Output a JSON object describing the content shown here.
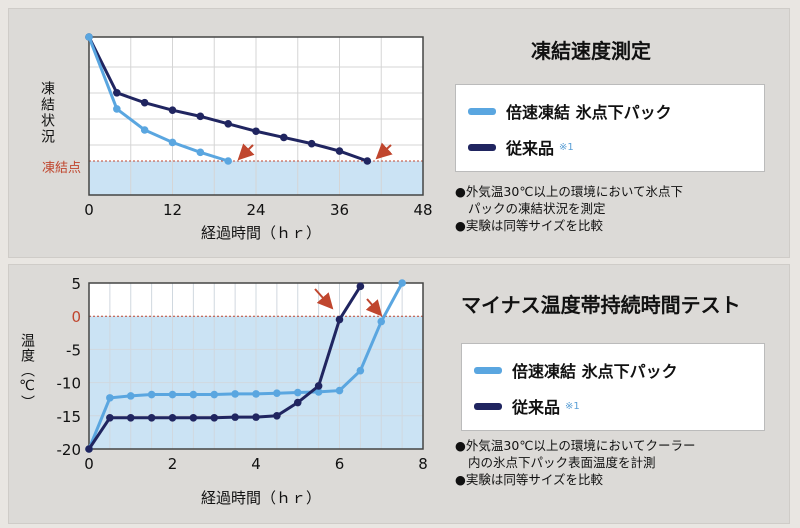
{
  "colors": {
    "fast": "#5aa6e0",
    "conventional": "#202560",
    "arrow": "#c0462e",
    "freeze": "#c0462e",
    "zone": "#cbe3f4"
  },
  "chart_data": [
    {
      "type": "line",
      "title": "凍結速度測定",
      "xlabel": "経過時間（ｈｒ）",
      "ylabel": "凍結状況",
      "y_marker_label": "凍結点",
      "xlim": [
        0,
        48
      ],
      "xticks": [
        "0",
        "12",
        "24",
        "36",
        "48"
      ],
      "series": [
        {
          "name": "倍速凍結 氷点下パック",
          "key": "fast",
          "x": [
            0,
            4,
            8,
            12,
            16,
            20
          ],
          "y": [
            1.0,
            0.42,
            0.25,
            0.15,
            0.07,
            0.0
          ]
        },
        {
          "name": "従来品",
          "key": "conventional",
          "x": [
            0,
            4,
            8,
            12,
            16,
            20,
            24,
            28,
            32,
            36,
            40
          ],
          "y": [
            1.0,
            0.55,
            0.47,
            0.41,
            0.36,
            0.3,
            0.24,
            0.19,
            0.14,
            0.08,
            0.0
          ]
        }
      ],
      "legend": {
        "fast_label": "倍速凍結 氷点下パック",
        "conventional_label": "従来品",
        "note_mark": "※1"
      },
      "notes": [
        "●外気温30℃以上の環境において氷点下",
        "パックの凍結状況を測定",
        "●実験は同等サイズを比較"
      ]
    },
    {
      "type": "line",
      "title": "マイナス温度帯持続時間テスト",
      "xlabel": "経過時間（ｈｒ）",
      "ylabel": "温度（℃）",
      "xlim": [
        0,
        8
      ],
      "ylim": [
        -20,
        5
      ],
      "xticks": [
        "0",
        "2",
        "4",
        "6",
        "8"
      ],
      "yticks": [
        "5",
        "0",
        "-5",
        "-10",
        "-15",
        "-20"
      ],
      "series": [
        {
          "name": "倍速凍結 氷点下パック",
          "key": "fast",
          "x": [
            0,
            0.5,
            1,
            1.5,
            2,
            2.5,
            3,
            3.5,
            4,
            4.5,
            5,
            5.5,
            6,
            6.5,
            7,
            7.5
          ],
          "y": [
            -20,
            -12.3,
            -12,
            -11.8,
            -11.8,
            -11.8,
            -11.8,
            -11.7,
            -11.7,
            -11.6,
            -11.5,
            -11.4,
            -11.2,
            -8.2,
            -0.8,
            5
          ]
        },
        {
          "name": "従来品",
          "key": "conventional",
          "x": [
            0,
            0.5,
            1,
            1.5,
            2,
            2.5,
            3,
            3.5,
            4,
            4.5,
            5,
            5.5,
            6,
            6.5
          ],
          "y": [
            -20,
            -15.3,
            -15.3,
            -15.3,
            -15.3,
            -15.3,
            -15.3,
            -15.2,
            -15.2,
            -15,
            -13,
            -10.5,
            -0.5,
            4.5
          ]
        }
      ],
      "legend": {
        "fast_label": "倍速凍結 氷点下パック",
        "conventional_label": "従来品",
        "note_mark": "※1"
      },
      "notes": [
        "●外気温30℃以上の環境においてクーラー",
        "内の氷点下パック表面温度を計測",
        "●実験は同等サイズを比較"
      ]
    }
  ]
}
